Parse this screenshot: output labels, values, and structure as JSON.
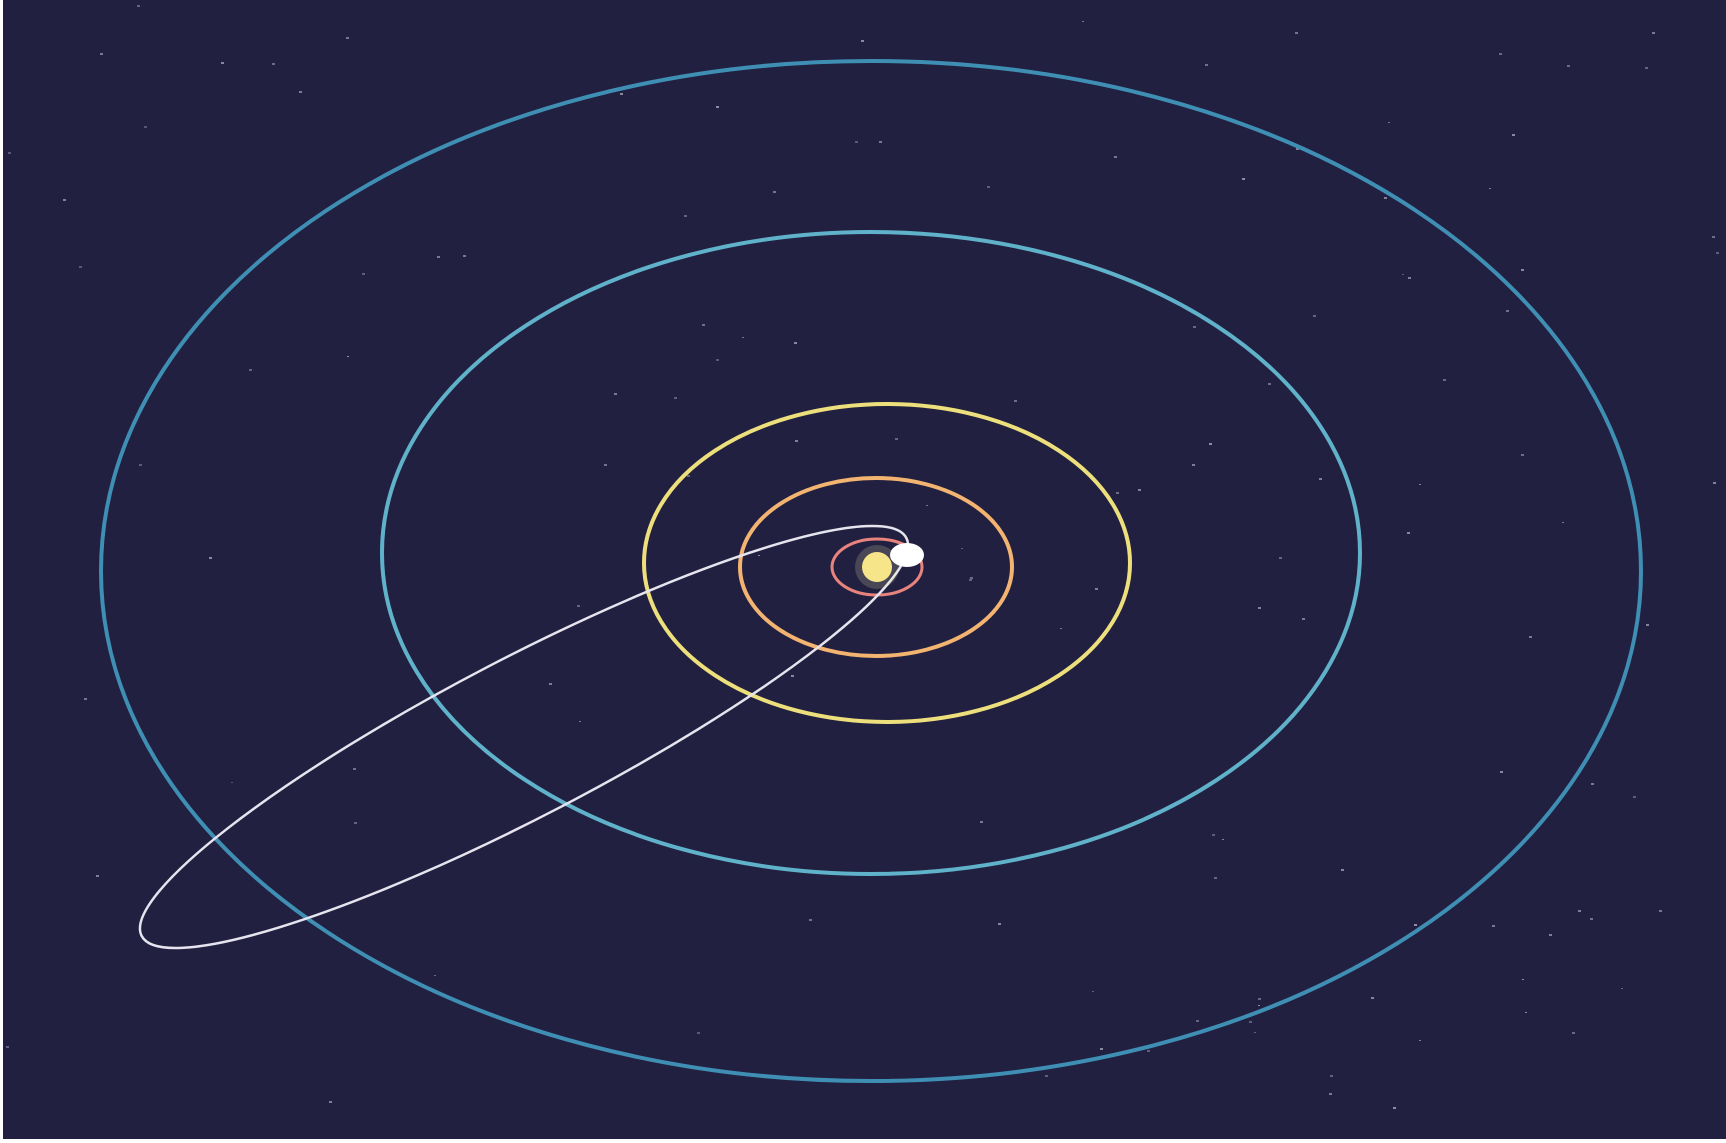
{
  "scene": {
    "background_color": "#222040",
    "star_color": "#9a9cb0",
    "star_count": 130,
    "star_seed": 7
  },
  "sun": {
    "color": "#f7e58a",
    "glow_color": "#fff4b8"
  },
  "orbits": [
    {
      "name": "orbit-innermost",
      "color": "#e8837d"
    },
    {
      "name": "orbit-second",
      "color": "#f2b470"
    },
    {
      "name": "orbit-third",
      "color": "#ede07c"
    },
    {
      "name": "orbit-fourth",
      "color": "#5fb2c9"
    },
    {
      "name": "orbit-outermost",
      "color": "#3f8fb5"
    }
  ],
  "comet_orbit": {
    "color": "#e6e4ee"
  },
  "comet": {
    "color": "#ffffff"
  }
}
